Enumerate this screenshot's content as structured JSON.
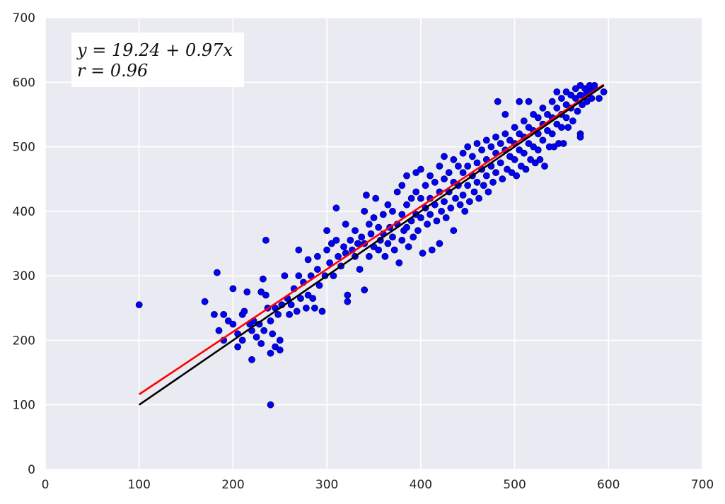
{
  "chart_data": {
    "type": "scatter",
    "title": "",
    "xlabel": "",
    "ylabel": "",
    "xlim": [
      0,
      700
    ],
    "ylim": [
      0,
      700
    ],
    "x_ticks": [
      0,
      100,
      200,
      300,
      400,
      500,
      600,
      700
    ],
    "y_ticks": [
      0,
      100,
      200,
      300,
      400,
      500,
      600,
      700
    ],
    "grid": true,
    "annotation": {
      "line1": "y = 19.24 + 0.97x",
      "line2": "r = 0.96"
    },
    "colors": {
      "background": "#eaeaf2",
      "grid": "#ffffff",
      "points": "#0000ff",
      "regression_line": "#ff0000",
      "identity_line": "#000000"
    },
    "lines": [
      {
        "kind": "fit",
        "x": [
          100,
          595
        ],
        "y": [
          116.24,
          596.39
        ]
      },
      {
        "kind": "identity",
        "x": [
          100,
          595
        ],
        "y": [
          100,
          595
        ]
      }
    ],
    "series": [
      {
        "points": [
          [
            100,
            255
          ],
          [
            183,
            305
          ],
          [
            170,
            260
          ],
          [
            180,
            240
          ],
          [
            185,
            215
          ],
          [
            190,
            240
          ],
          [
            190,
            200
          ],
          [
            195,
            230
          ],
          [
            200,
            280
          ],
          [
            200,
            225
          ],
          [
            205,
            210
          ],
          [
            205,
            190
          ],
          [
            210,
            240
          ],
          [
            210,
            200
          ],
          [
            212,
            245
          ],
          [
            215,
            275
          ],
          [
            218,
            225
          ],
          [
            220,
            215
          ],
          [
            220,
            170
          ],
          [
            222,
            230
          ],
          [
            225,
            205
          ],
          [
            228,
            225
          ],
          [
            230,
            275
          ],
          [
            230,
            195
          ],
          [
            232,
            295
          ],
          [
            233,
            215
          ],
          [
            235,
            355
          ],
          [
            235,
            270
          ],
          [
            237,
            250
          ],
          [
            240,
            230
          ],
          [
            240,
            180
          ],
          [
            240,
            100
          ],
          [
            242,
            210
          ],
          [
            245,
            250
          ],
          [
            245,
            190
          ],
          [
            248,
            240
          ],
          [
            250,
            200
          ],
          [
            250,
            185
          ],
          [
            252,
            255
          ],
          [
            255,
            300
          ],
          [
            258,
            265
          ],
          [
            260,
            240
          ],
          [
            262,
            255
          ],
          [
            265,
            280
          ],
          [
            268,
            245
          ],
          [
            270,
            340
          ],
          [
            270,
            300
          ],
          [
            272,
            265
          ],
          [
            275,
            290
          ],
          [
            278,
            250
          ],
          [
            280,
            325
          ],
          [
            280,
            270
          ],
          [
            283,
            300
          ],
          [
            285,
            265
          ],
          [
            287,
            250
          ],
          [
            290,
            330
          ],
          [
            290,
            310
          ],
          [
            292,
            285
          ],
          [
            295,
            245
          ],
          [
            298,
            300
          ],
          [
            300,
            370
          ],
          [
            300,
            340
          ],
          [
            303,
            320
          ],
          [
            305,
            350
          ],
          [
            307,
            300
          ],
          [
            310,
            405
          ],
          [
            310,
            355
          ],
          [
            312,
            330
          ],
          [
            315,
            315
          ],
          [
            318,
            345
          ],
          [
            320,
            380
          ],
          [
            320,
            335
          ],
          [
            322,
            270
          ],
          [
            322,
            260
          ],
          [
            325,
            355
          ],
          [
            327,
            340
          ],
          [
            330,
            370
          ],
          [
            330,
            330
          ],
          [
            333,
            350
          ],
          [
            335,
            310
          ],
          [
            337,
            360
          ],
          [
            340,
            400
          ],
          [
            340,
            350
          ],
          [
            340,
            278
          ],
          [
            342,
            425
          ],
          [
            345,
            380
          ],
          [
            345,
            330
          ],
          [
            347,
            365
          ],
          [
            350,
            390
          ],
          [
            350,
            345
          ],
          [
            352,
            420
          ],
          [
            355,
            375
          ],
          [
            355,
            340
          ],
          [
            357,
            355
          ],
          [
            360,
            395
          ],
          [
            360,
            365
          ],
          [
            362,
            330
          ],
          [
            365,
            410
          ],
          [
            365,
            350
          ],
          [
            367,
            375
          ],
          [
            370,
            400
          ],
          [
            370,
            360
          ],
          [
            372,
            340
          ],
          [
            375,
            430
          ],
          [
            375,
            380
          ],
          [
            377,
            320
          ],
          [
            380,
            440
          ],
          [
            380,
            395
          ],
          [
            380,
            355
          ],
          [
            382,
            370
          ],
          [
            385,
            455
          ],
          [
            385,
            410
          ],
          [
            385,
            375
          ],
          [
            387,
            345
          ],
          [
            390,
            420
          ],
          [
            390,
            385
          ],
          [
            392,
            360
          ],
          [
            395,
            460
          ],
          [
            395,
            430
          ],
          [
            395,
            395
          ],
          [
            397,
            370
          ],
          [
            400,
            465
          ],
          [
            400,
            420
          ],
          [
            400,
            390
          ],
          [
            402,
            335
          ],
          [
            405,
            440
          ],
          [
            405,
            405
          ],
          [
            407,
            380
          ],
          [
            410,
            455
          ],
          [
            410,
            420
          ],
          [
            410,
            395
          ],
          [
            412,
            340
          ],
          [
            415,
            445
          ],
          [
            415,
            410
          ],
          [
            417,
            385
          ],
          [
            420,
            470
          ],
          [
            420,
            430
          ],
          [
            420,
            350
          ],
          [
            422,
            400
          ],
          [
            425,
            485
          ],
          [
            425,
            450
          ],
          [
            425,
            415
          ],
          [
            427,
            390
          ],
          [
            430,
            460
          ],
          [
            430,
            430
          ],
          [
            432,
            405
          ],
          [
            435,
            480
          ],
          [
            435,
            445
          ],
          [
            435,
            370
          ],
          [
            437,
            420
          ],
          [
            440,
            470
          ],
          [
            440,
            440
          ],
          [
            442,
            410
          ],
          [
            445,
            490
          ],
          [
            445,
            460
          ],
          [
            445,
            425
          ],
          [
            447,
            400
          ],
          [
            450,
            500
          ],
          [
            450,
            470
          ],
          [
            450,
            440
          ],
          [
            452,
            415
          ],
          [
            455,
            485
          ],
          [
            455,
            455
          ],
          [
            457,
            430
          ],
          [
            460,
            505
          ],
          [
            460,
            475
          ],
          [
            460,
            445
          ],
          [
            462,
            420
          ],
          [
            465,
            495
          ],
          [
            465,
            465
          ],
          [
            467,
            440
          ],
          [
            470,
            510
          ],
          [
            470,
            480
          ],
          [
            470,
            455
          ],
          [
            472,
            430
          ],
          [
            475,
            500
          ],
          [
            475,
            470
          ],
          [
            477,
            445
          ],
          [
            480,
            515
          ],
          [
            480,
            490
          ],
          [
            480,
            460
          ],
          [
            482,
            570
          ],
          [
            485,
            505
          ],
          [
            485,
            475
          ],
          [
            487,
            450
          ],
          [
            490,
            550
          ],
          [
            490,
            520
          ],
          [
            490,
            495
          ],
          [
            492,
            465
          ],
          [
            495,
            510
          ],
          [
            495,
            485
          ],
          [
            497,
            460
          ],
          [
            500,
            530
          ],
          [
            500,
            505
          ],
          [
            500,
            480
          ],
          [
            502,
            455
          ],
          [
            505,
            570
          ],
          [
            505,
            520
          ],
          [
            505,
            495
          ],
          [
            507,
            470
          ],
          [
            510,
            540
          ],
          [
            510,
            515
          ],
          [
            510,
            490
          ],
          [
            512,
            465
          ],
          [
            515,
            570
          ],
          [
            515,
            530
          ],
          [
            515,
            505
          ],
          [
            517,
            480
          ],
          [
            520,
            550
          ],
          [
            520,
            525
          ],
          [
            520,
            500
          ],
          [
            522,
            475
          ],
          [
            525,
            545
          ],
          [
            525,
            520
          ],
          [
            525,
            495
          ],
          [
            527,
            480
          ],
          [
            530,
            560
          ],
          [
            530,
            535
          ],
          [
            530,
            510
          ],
          [
            532,
            470
          ],
          [
            535,
            550
          ],
          [
            535,
            525
          ],
          [
            537,
            500
          ],
          [
            540,
            570
          ],
          [
            540,
            545
          ],
          [
            540,
            520
          ],
          [
            542,
            500
          ],
          [
            545,
            585
          ],
          [
            545,
            560
          ],
          [
            545,
            535
          ],
          [
            547,
            505
          ],
          [
            550,
            575
          ],
          [
            550,
            550
          ],
          [
            550,
            530
          ],
          [
            552,
            505
          ],
          [
            555,
            585
          ],
          [
            555,
            565
          ],
          [
            555,
            545
          ],
          [
            557,
            530
          ],
          [
            560,
            580
          ],
          [
            560,
            560
          ],
          [
            562,
            540
          ],
          [
            565,
            590
          ],
          [
            565,
            575
          ],
          [
            567,
            555
          ],
          [
            570,
            595
          ],
          [
            570,
            580
          ],
          [
            570,
            520
          ],
          [
            570,
            515
          ],
          [
            572,
            565
          ],
          [
            575,
            590
          ],
          [
            575,
            580
          ],
          [
            577,
            570
          ],
          [
            580,
            595
          ],
          [
            580,
            585
          ],
          [
            582,
            575
          ],
          [
            585,
            595
          ],
          [
            585,
            590
          ],
          [
            590,
            575
          ],
          [
            595,
            585
          ]
        ]
      }
    ]
  }
}
